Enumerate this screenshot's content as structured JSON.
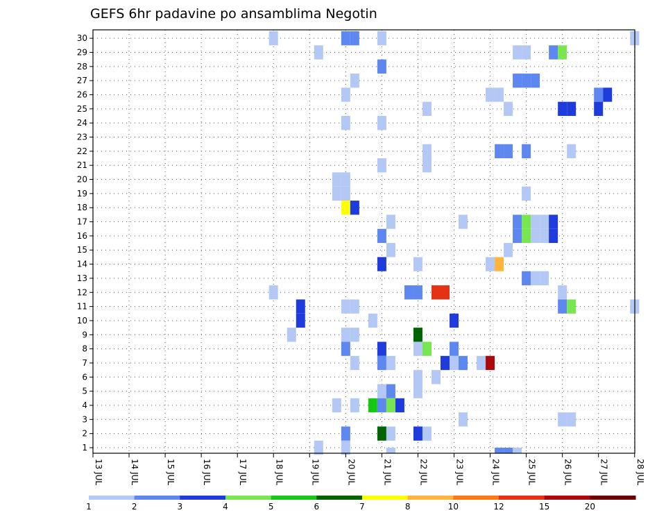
{
  "chart_data": {
    "type": "heatmap",
    "title": "GEFS 6hr padavine po ansamblima Negotin",
    "xlabel": "",
    "ylabel": "",
    "x_tick_labels": [
      "13 JUL",
      "14 JUL",
      "15 JUL",
      "16 JUL",
      "17 JUL",
      "18 JUL",
      "19 JUL",
      "20 JUL",
      "21 JUL",
      "22 JUL",
      "23 JUL",
      "24 JUL",
      "25 JUL",
      "26 JUL",
      "27 JUL",
      "28 JUL"
    ],
    "x_range_days": [
      13,
      28.15
    ],
    "y_tick_labels": [
      "1",
      "2",
      "3",
      "4",
      "5",
      "6",
      "7",
      "8",
      "9",
      "10",
      "11",
      "12",
      "13",
      "14",
      "15",
      "16",
      "17",
      "18",
      "19",
      "20",
      "21",
      "22",
      "23",
      "24",
      "25",
      "26",
      "27",
      "28",
      "29",
      "30"
    ],
    "y_range": [
      0,
      30
    ],
    "grid": "dotted",
    "legend_placement": "bottom",
    "legend": {
      "labels": [
        "1",
        "2",
        "3",
        "4",
        "5",
        "6",
        "7",
        "8",
        "10",
        "12",
        "15",
        "20"
      ],
      "colors": [
        "#b4c8f5",
        "#5f87f0",
        "#1e3cdc",
        "#78e650",
        "#14c814",
        "#006400",
        "#ffff00",
        "#ffb43c",
        "#ff7814",
        "#e63214",
        "#aa0a0a",
        "#6e0000"
      ]
    },
    "points": [
      {
        "x": "18 JUL 00Z",
        "y": 30,
        "value": 1
      },
      {
        "x": "20 JUL 00Z",
        "y": 30,
        "value": 2
      },
      {
        "x": "20 JUL 06Z",
        "y": 30,
        "value": 2
      },
      {
        "x": "21 JUL 00Z",
        "y": 30,
        "value": 1
      },
      {
        "x": "28 JUL 00Z",
        "y": 30,
        "value": 1
      },
      {
        "x": "19 JUL 06Z",
        "y": 29,
        "value": 1
      },
      {
        "x": "24 JUL 18Z",
        "y": 29,
        "value": 1
      },
      {
        "x": "25 JUL 00Z",
        "y": 29,
        "value": 1
      },
      {
        "x": "25 JUL 18Z",
        "y": 29,
        "value": 2
      },
      {
        "x": "26 JUL 00Z",
        "y": 29,
        "value": 4
      },
      {
        "x": "21 JUL 00Z",
        "y": 28,
        "value": 2
      },
      {
        "x": "20 JUL 06Z",
        "y": 27,
        "value": 1
      },
      {
        "x": "24 JUL 18Z",
        "y": 27,
        "value": 2
      },
      {
        "x": "25 JUL 00Z",
        "y": 27,
        "value": 2
      },
      {
        "x": "25 JUL 06Z",
        "y": 27,
        "value": 2
      },
      {
        "x": "20 JUL 00Z",
        "y": 26,
        "value": 1
      },
      {
        "x": "24 JUL 00Z",
        "y": 26,
        "value": 1
      },
      {
        "x": "24 JUL 06Z",
        "y": 26,
        "value": 1
      },
      {
        "x": "27 JUL 00Z",
        "y": 26,
        "value": 2
      },
      {
        "x": "27 JUL 06Z",
        "y": 26,
        "value": 3
      },
      {
        "x": "22 JUL 06Z",
        "y": 25,
        "value": 1
      },
      {
        "x": "24 JUL 12Z",
        "y": 25,
        "value": 1
      },
      {
        "x": "26 JUL 00Z",
        "y": 25,
        "value": 3
      },
      {
        "x": "26 JUL 06Z",
        "y": 25,
        "value": 3
      },
      {
        "x": "27 JUL 00Z",
        "y": 25,
        "value": 3
      },
      {
        "x": "20 JUL 00Z",
        "y": 24,
        "value": 1
      },
      {
        "x": "21 JUL 00Z",
        "y": 24,
        "value": 1
      },
      {
        "x": "22 JUL 06Z",
        "y": 22,
        "value": 1
      },
      {
        "x": "24 JUL 06Z",
        "y": 22,
        "value": 2
      },
      {
        "x": "24 JUL 12Z",
        "y": 22,
        "value": 2
      },
      {
        "x": "25 JUL 00Z",
        "y": 22,
        "value": 2
      },
      {
        "x": "26 JUL 06Z",
        "y": 22,
        "value": 1
      },
      {
        "x": "21 JUL 00Z",
        "y": 21,
        "value": 1
      },
      {
        "x": "22 JUL 06Z",
        "y": 21,
        "value": 1
      },
      {
        "x": "19 JUL 18Z",
        "y": 20,
        "value": 1
      },
      {
        "x": "20 JUL 00Z",
        "y": 20,
        "value": 1
      },
      {
        "x": "19 JUL 18Z",
        "y": 19,
        "value": 1
      },
      {
        "x": "20 JUL 00Z",
        "y": 19,
        "value": 1
      },
      {
        "x": "25 JUL 00Z",
        "y": 19,
        "value": 1
      },
      {
        "x": "20 JUL 00Z",
        "y": 18,
        "value": 7
      },
      {
        "x": "20 JUL 06Z",
        "y": 18,
        "value": 3
      },
      {
        "x": "21 JUL 06Z",
        "y": 17,
        "value": 1
      },
      {
        "x": "23 JUL 06Z",
        "y": 17,
        "value": 1
      },
      {
        "x": "24 JUL 18Z",
        "y": 17,
        "value": 2
      },
      {
        "x": "25 JUL 00Z",
        "y": 17,
        "value": 4
      },
      {
        "x": "25 JUL 06Z",
        "y": 17,
        "value": 1
      },
      {
        "x": "25 JUL 12Z",
        "y": 17,
        "value": 1
      },
      {
        "x": "25 JUL 18Z",
        "y": 17,
        "value": 3
      },
      {
        "x": "21 JUL 00Z",
        "y": 16,
        "value": 2
      },
      {
        "x": "24 JUL 18Z",
        "y": 16,
        "value": 2
      },
      {
        "x": "25 JUL 00Z",
        "y": 16,
        "value": 4
      },
      {
        "x": "25 JUL 06Z",
        "y": 16,
        "value": 1
      },
      {
        "x": "25 JUL 12Z",
        "y": 16,
        "value": 1
      },
      {
        "x": "25 JUL 18Z",
        "y": 16,
        "value": 3
      },
      {
        "x": "21 JUL 06Z",
        "y": 15,
        "value": 1
      },
      {
        "x": "24 JUL 12Z",
        "y": 15,
        "value": 1
      },
      {
        "x": "21 JUL 00Z",
        "y": 14,
        "value": 3
      },
      {
        "x": "22 JUL 00Z",
        "y": 14,
        "value": 1
      },
      {
        "x": "24 JUL 00Z",
        "y": 14,
        "value": 1
      },
      {
        "x": "24 JUL 06Z",
        "y": 14,
        "value": 8
      },
      {
        "x": "25 JUL 00Z",
        "y": 13,
        "value": 2
      },
      {
        "x": "25 JUL 06Z",
        "y": 13,
        "value": 1
      },
      {
        "x": "25 JUL 12Z",
        "y": 13,
        "value": 1
      },
      {
        "x": "18 JUL 00Z",
        "y": 12,
        "value": 1
      },
      {
        "x": "21 JUL 18Z",
        "y": 12,
        "value": 2
      },
      {
        "x": "22 JUL 00Z",
        "y": 12,
        "value": 2
      },
      {
        "x": "22 JUL 12Z",
        "y": 12,
        "value": 12
      },
      {
        "x": "22 JUL 18Z",
        "y": 12,
        "value": 12
      },
      {
        "x": "26 JUL 00Z",
        "y": 12,
        "value": 1
      },
      {
        "x": "18 JUL 18Z",
        "y": 11,
        "value": 3
      },
      {
        "x": "20 JUL 00Z",
        "y": 11,
        "value": 1
      },
      {
        "x": "20 JUL 06Z",
        "y": 11,
        "value": 1
      },
      {
        "x": "26 JUL 00Z",
        "y": 11,
        "value": 2
      },
      {
        "x": "26 JUL 06Z",
        "y": 11,
        "value": 4
      },
      {
        "x": "28 JUL 00Z",
        "y": 11,
        "value": 1
      },
      {
        "x": "18 JUL 18Z",
        "y": 10,
        "value": 3
      },
      {
        "x": "20 JUL 18Z",
        "y": 10,
        "value": 1
      },
      {
        "x": "23 JUL 00Z",
        "y": 10,
        "value": 3
      },
      {
        "x": "18 JUL 12Z",
        "y": 9,
        "value": 1
      },
      {
        "x": "20 JUL 00Z",
        "y": 9,
        "value": 1
      },
      {
        "x": "20 JUL 06Z",
        "y": 9,
        "value": 1
      },
      {
        "x": "22 JUL 00Z",
        "y": 9,
        "value": 6
      },
      {
        "x": "20 JUL 00Z",
        "y": 8,
        "value": 2
      },
      {
        "x": "21 JUL 00Z",
        "y": 8,
        "value": 3
      },
      {
        "x": "22 JUL 00Z",
        "y": 8,
        "value": 1
      },
      {
        "x": "22 JUL 06Z",
        "y": 8,
        "value": 4
      },
      {
        "x": "23 JUL 00Z",
        "y": 8,
        "value": 2
      },
      {
        "x": "20 JUL 06Z",
        "y": 7,
        "value": 1
      },
      {
        "x": "21 JUL 00Z",
        "y": 7,
        "value": 2
      },
      {
        "x": "21 JUL 06Z",
        "y": 7,
        "value": 1
      },
      {
        "x": "22 JUL 18Z",
        "y": 7,
        "value": 3
      },
      {
        "x": "23 JUL 00Z",
        "y": 7,
        "value": 1
      },
      {
        "x": "23 JUL 06Z",
        "y": 7,
        "value": 2
      },
      {
        "x": "23 JUL 18Z",
        "y": 7,
        "value": 1
      },
      {
        "x": "24 JUL 00Z",
        "y": 7,
        "value": 15
      },
      {
        "x": "22 JUL 00Z",
        "y": 6,
        "value": 1
      },
      {
        "x": "22 JUL 12Z",
        "y": 6,
        "value": 1
      },
      {
        "x": "21 JUL 00Z",
        "y": 5,
        "value": 1
      },
      {
        "x": "21 JUL 06Z",
        "y": 5,
        "value": 2
      },
      {
        "x": "22 JUL 00Z",
        "y": 5,
        "value": 1
      },
      {
        "x": "19 JUL 18Z",
        "y": 4,
        "value": 1
      },
      {
        "x": "20 JUL 06Z",
        "y": 4,
        "value": 1
      },
      {
        "x": "20 JUL 18Z",
        "y": 4,
        "value": 5
      },
      {
        "x": "21 JUL 00Z",
        "y": 4,
        "value": 2
      },
      {
        "x": "21 JUL 06Z",
        "y": 4,
        "value": 4
      },
      {
        "x": "21 JUL 12Z",
        "y": 4,
        "value": 3
      },
      {
        "x": "23 JUL 06Z",
        "y": 3,
        "value": 1
      },
      {
        "x": "26 JUL 00Z",
        "y": 3,
        "value": 1
      },
      {
        "x": "26 JUL 06Z",
        "y": 3,
        "value": 1
      },
      {
        "x": "20 JUL 00Z",
        "y": 2,
        "value": 2
      },
      {
        "x": "21 JUL 00Z",
        "y": 2,
        "value": 6
      },
      {
        "x": "21 JUL 06Z",
        "y": 2,
        "value": 1
      },
      {
        "x": "22 JUL 00Z",
        "y": 2,
        "value": 3
      },
      {
        "x": "22 JUL 06Z",
        "y": 2,
        "value": 1
      },
      {
        "x": "19 JUL 06Z",
        "y": 1,
        "value": 1
      },
      {
        "x": "20 JUL 00Z",
        "y": 1,
        "value": 1
      }
    ],
    "points_below_axis": [
      {
        "x": "21 JUL 06Z",
        "value": 1
      },
      {
        "x": "24 JUL 06Z",
        "value": 2
      },
      {
        "x": "24 JUL 12Z",
        "value": 2
      },
      {
        "x": "24 JUL 18Z",
        "value": 1
      }
    ]
  }
}
